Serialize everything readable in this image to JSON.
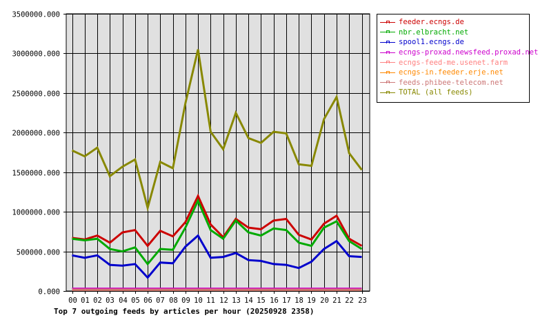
{
  "chart_data": {
    "type": "line",
    "title": "Top 7 outgoing feeds by articles per hour (20250928 2358)",
    "xlabel": "",
    "ylabel": "",
    "ylim": [
      0,
      3500000
    ],
    "yticks": [
      "0.000",
      "500000.000",
      "1000000.000",
      "1500000.000",
      "2000000.000",
      "2500000.000",
      "3000000.000",
      "3500000.000"
    ],
    "x": [
      "00",
      "01",
      "02",
      "03",
      "04",
      "05",
      "06",
      "07",
      "08",
      "09",
      "10",
      "11",
      "12",
      "13",
      "14",
      "15",
      "16",
      "17",
      "18",
      "19",
      "20",
      "21",
      "22",
      "23"
    ],
    "grid": true,
    "legend_position": "right",
    "series": [
      {
        "name": "feeder.ecngs.de",
        "color": "#cc0000",
        "values": [
          670000,
          650000,
          700000,
          610000,
          740000,
          770000,
          570000,
          760000,
          690000,
          870000,
          1200000,
          840000,
          680000,
          910000,
          800000,
          780000,
          890000,
          910000,
          710000,
          650000,
          850000,
          950000,
          660000,
          570000
        ]
      },
      {
        "name": "nbr.elbracht.net",
        "color": "#00aa00",
        "values": [
          660000,
          640000,
          660000,
          530000,
          500000,
          550000,
          340000,
          530000,
          520000,
          800000,
          1140000,
          770000,
          660000,
          890000,
          740000,
          700000,
          790000,
          770000,
          610000,
          570000,
          800000,
          880000,
          630000,
          530000
        ]
      },
      {
        "name": "spool1.ecngs.de",
        "color": "#0000cc",
        "values": [
          450000,
          420000,
          450000,
          330000,
          320000,
          340000,
          170000,
          360000,
          350000,
          560000,
          700000,
          420000,
          430000,
          480000,
          390000,
          380000,
          340000,
          330000,
          290000,
          370000,
          530000,
          630000,
          440000,
          430000
        ]
      },
      {
        "name": "ecngs-proxad.newsfeed.proxad.net",
        "color": "#cc00cc",
        "values": [
          30000,
          30000,
          30000,
          30000,
          30000,
          30000,
          30000,
          30000,
          30000,
          30000,
          30000,
          30000,
          30000,
          30000,
          30000,
          30000,
          30000,
          30000,
          30000,
          30000,
          30000,
          30000,
          30000,
          30000
        ]
      },
      {
        "name": "ecngs-feed-me.usenet.farm",
        "color": "#ff8080",
        "values": [
          15000,
          15000,
          15000,
          15000,
          15000,
          15000,
          15000,
          15000,
          15000,
          15000,
          15000,
          15000,
          15000,
          15000,
          15000,
          15000,
          15000,
          15000,
          15000,
          15000,
          15000,
          15000,
          15000,
          15000
        ]
      },
      {
        "name": "ecngs-in.feeder.erje.net",
        "color": "#ff8800",
        "values": [
          15000,
          15000,
          15000,
          15000,
          15000,
          15000,
          15000,
          15000,
          15000,
          15000,
          15000,
          15000,
          15000,
          15000,
          15000,
          15000,
          15000,
          15000,
          15000,
          15000,
          15000,
          15000,
          15000,
          15000
        ]
      },
      {
        "name": "feeds.phibee-telecom.net",
        "color": "#cc7777",
        "values": [
          15000,
          15000,
          15000,
          15000,
          15000,
          15000,
          15000,
          15000,
          15000,
          15000,
          15000,
          15000,
          15000,
          15000,
          15000,
          15000,
          15000,
          15000,
          15000,
          15000,
          15000,
          15000,
          15000,
          15000
        ]
      },
      {
        "name": "TOTAL (all feeds)",
        "color": "#888800",
        "values": [
          1775000,
          1700000,
          1810000,
          1450000,
          1570000,
          1660000,
          1050000,
          1630000,
          1550000,
          2370000,
          3050000,
          2010000,
          1790000,
          2250000,
          1930000,
          1870000,
          2010000,
          1990000,
          1600000,
          1580000,
          2170000,
          2450000,
          1740000,
          1530000
        ]
      }
    ]
  }
}
